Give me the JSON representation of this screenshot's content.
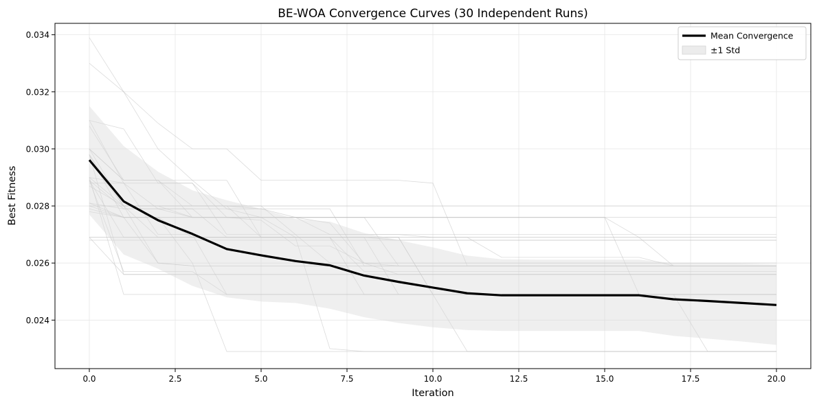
{
  "chart_data": {
    "type": "line",
    "title": "BE-WOA Convergence Curves (30 Independent Runs)",
    "xlabel": "Iteration",
    "ylabel": "Best Fitness",
    "xlim": [
      -1,
      21
    ],
    "ylim": [
      0.0223,
      0.0344
    ],
    "x_ticks": [
      0,
      2.5,
      5,
      7.5,
      10,
      12.5,
      15,
      17.5,
      20
    ],
    "x_tick_labels": [
      "0.0",
      "2.5",
      "5.0",
      "7.5",
      "10.0",
      "12.5",
      "15.0",
      "17.5",
      "20.0"
    ],
    "y_ticks": [
      0.024,
      0.026,
      0.028,
      0.03,
      0.032,
      0.034
    ],
    "y_tick_labels": [
      "0.024",
      "0.026",
      "0.028",
      "0.030",
      "0.032",
      "0.034"
    ],
    "grid": true,
    "legend_position": "top-right",
    "legend": [
      {
        "label": "Mean Convergence",
        "kind": "line",
        "color": "#000000"
      },
      {
        "label": "±1 Std",
        "kind": "band",
        "color": "#d9d9d9"
      }
    ],
    "x": [
      0,
      1,
      2,
      3,
      4,
      5,
      6,
      7,
      8,
      9,
      10,
      11,
      12,
      13,
      14,
      15,
      16,
      17,
      18,
      19,
      20
    ],
    "series": [
      {
        "name": "Mean Convergence",
        "role": "mean",
        "color": "#000000",
        "values": [
          0.02961,
          0.02816,
          0.0275,
          0.02702,
          0.02649,
          0.02627,
          0.02607,
          0.02592,
          0.02556,
          0.02534,
          0.02514,
          0.02494,
          0.02487,
          0.02487,
          0.02487,
          0.02487,
          0.02487,
          0.02473,
          0.02467,
          0.0246,
          0.02453
        ]
      },
      {
        "name": "±1 Std",
        "role": "band",
        "color": "#d9d9d9",
        "upper": [
          0.0315,
          0.0301,
          0.0292,
          0.02855,
          0.0282,
          0.0279,
          0.02754,
          0.02745,
          0.02705,
          0.0268,
          0.02655,
          0.02626,
          0.02613,
          0.02612,
          0.02612,
          0.02612,
          0.02612,
          0.026,
          0.026,
          0.02598,
          0.02595
        ],
        "lower": [
          0.0277,
          0.0263,
          0.0258,
          0.0252,
          0.0248,
          0.02465,
          0.0246,
          0.0244,
          0.0241,
          0.0239,
          0.02375,
          0.02365,
          0.02362,
          0.02362,
          0.02362,
          0.02362,
          0.02362,
          0.02345,
          0.02335,
          0.02325,
          0.02313
        ]
      }
    ],
    "runs_color": "#bdbdbd",
    "runs": [
      [
        0.0339,
        0.032,
        0.0309,
        0.03,
        0.03,
        0.0289,
        0.0289,
        0.0289,
        0.0289,
        0.0289,
        0.0288,
        0.0259,
        0.0259,
        0.0259,
        0.0259,
        0.0259,
        0.0259,
        0.0259,
        0.0259,
        0.0259,
        0.0259
      ],
      [
        0.033,
        0.032,
        0.03,
        0.0289,
        0.0279,
        0.0276,
        0.0276,
        0.0274,
        0.026,
        0.0259,
        0.0259,
        0.0259,
        0.0259,
        0.0259,
        0.0259,
        0.0259,
        0.0259,
        0.0259,
        0.0259,
        0.0259,
        0.0259
      ],
      [
        0.031,
        0.0288,
        0.0288,
        0.0288,
        0.0276,
        0.0276,
        0.0276,
        0.027,
        0.027,
        0.027,
        0.0269,
        0.0269,
        0.0262,
        0.0262,
        0.0262,
        0.0262,
        0.0262,
        0.0259,
        0.0259,
        0.0259,
        0.0259
      ],
      [
        0.031,
        0.0307,
        0.0288,
        0.0288,
        0.027,
        0.027,
        0.027,
        0.026,
        0.026,
        0.0256,
        0.0256,
        0.0256,
        0.0256,
        0.0256,
        0.0256,
        0.0256,
        0.0256,
        0.0256,
        0.0256,
        0.0256,
        0.0256
      ],
      [
        0.0308,
        0.0289,
        0.0289,
        0.0289,
        0.0289,
        0.0269,
        0.0269,
        0.0269,
        0.0249,
        0.0249,
        0.0249,
        0.0249,
        0.0249,
        0.0249,
        0.0249,
        0.0249,
        0.0249,
        0.0249,
        0.0249,
        0.0249,
        0.0249
      ],
      [
        0.03,
        0.028,
        0.028,
        0.0276,
        0.0276,
        0.0276,
        0.0276,
        0.0276,
        0.0276,
        0.0259,
        0.0259,
        0.0259,
        0.0259,
        0.0259,
        0.0259,
        0.0259,
        0.0259,
        0.0259,
        0.0259,
        0.0259,
        0.0259
      ],
      [
        0.03,
        0.0289,
        0.0289,
        0.028,
        0.028,
        0.0279,
        0.0279,
        0.0279,
        0.0259,
        0.0259,
        0.0259,
        0.0259,
        0.0259,
        0.0259,
        0.0259,
        0.0259,
        0.0259,
        0.0259,
        0.0259,
        0.0259,
        0.0259
      ],
      [
        0.0298,
        0.028,
        0.028,
        0.028,
        0.028,
        0.028,
        0.028,
        0.028,
        0.028,
        0.028,
        0.028,
        0.028,
        0.028,
        0.028,
        0.028,
        0.028,
        0.028,
        0.028,
        0.028,
        0.028,
        0.028
      ],
      [
        0.029,
        0.0288,
        0.0279,
        0.0279,
        0.0279,
        0.0279,
        0.0276,
        0.0276,
        0.0276,
        0.0276,
        0.0276,
        0.0276,
        0.0276,
        0.0276,
        0.0276,
        0.0276,
        0.0276,
        0.0276,
        0.0276,
        0.0276,
        0.0276
      ],
      [
        0.0298,
        0.0276,
        0.0276,
        0.0269,
        0.0269,
        0.0269,
        0.0269,
        0.0269,
        0.0269,
        0.0268,
        0.0268,
        0.0268,
        0.0268,
        0.0268,
        0.0268,
        0.0268,
        0.0268,
        0.0268,
        0.0268,
        0.0268,
        0.0268
      ],
      [
        0.0289,
        0.0279,
        0.0279,
        0.0276,
        0.0276,
        0.0275,
        0.0266,
        0.0266,
        0.026,
        0.026,
        0.026,
        0.026,
        0.026,
        0.026,
        0.026,
        0.026,
        0.026,
        0.026,
        0.026,
        0.026,
        0.026
      ],
      [
        0.0281,
        0.0279,
        0.0279,
        0.0279,
        0.0269,
        0.0269,
        0.0269,
        0.0269,
        0.0257,
        0.0257,
        0.0257,
        0.0257,
        0.0257,
        0.0257,
        0.0257,
        0.0257,
        0.0257,
        0.0257,
        0.0257,
        0.0257,
        0.0257
      ],
      [
        0.028,
        0.028,
        0.0269,
        0.0269,
        0.0269,
        0.0269,
        0.0269,
        0.0269,
        0.0269,
        0.0249,
        0.0249,
        0.0249,
        0.0249,
        0.0249,
        0.0249,
        0.0249,
        0.0249,
        0.0249,
        0.0249,
        0.0249,
        0.0249
      ],
      [
        0.0278,
        0.0276,
        0.0276,
        0.0276,
        0.0276,
        0.0276,
        0.0276,
        0.0276,
        0.0276,
        0.0276,
        0.0276,
        0.0276,
        0.0276,
        0.0276,
        0.0276,
        0.0276,
        0.0269,
        0.0259,
        0.0259,
        0.0259,
        0.0259
      ],
      [
        0.0269,
        0.0269,
        0.0269,
        0.0269,
        0.0269,
        0.0269,
        0.0269,
        0.0269,
        0.0269,
        0.0269,
        0.0249,
        0.0249,
        0.0249,
        0.0249,
        0.0249,
        0.0249,
        0.0249,
        0.0249,
        0.0249,
        0.0249,
        0.0249
      ],
      [
        0.0269,
        0.0269,
        0.0269,
        0.0269,
        0.0269,
        0.0269,
        0.0269,
        0.0269,
        0.0269,
        0.0269,
        0.0269,
        0.0269,
        0.0269,
        0.0269,
        0.0269,
        0.0269,
        0.0269,
        0.0269,
        0.0269,
        0.0269,
        0.0269
      ],
      [
        0.0268,
        0.0268,
        0.0268,
        0.0268,
        0.0268,
        0.0268,
        0.0268,
        0.0268,
        0.0268,
        0.0268,
        0.0268,
        0.0268,
        0.0268,
        0.0268,
        0.0268,
        0.0268,
        0.0268,
        0.0268,
        0.0268,
        0.0268,
        0.0268
      ],
      [
        0.0289,
        0.0257,
        0.0257,
        0.0257,
        0.0249,
        0.0249,
        0.0249,
        0.0249,
        0.0249,
        0.0249,
        0.0249,
        0.0249,
        0.0249,
        0.0249,
        0.0249,
        0.0249,
        0.0249,
        0.0249,
        0.0249,
        0.0249,
        0.0249
      ],
      [
        0.0298,
        0.0256,
        0.0256,
        0.0256,
        0.0256,
        0.0256,
        0.0256,
        0.0256,
        0.0256,
        0.0256,
        0.0256,
        0.0256,
        0.0256,
        0.0256,
        0.0256,
        0.0256,
        0.0256,
        0.0256,
        0.0256,
        0.0256,
        0.0256
      ],
      [
        0.029,
        0.0249,
        0.0249,
        0.0249,
        0.0249,
        0.0249,
        0.0249,
        0.0249,
        0.0249,
        0.0249,
        0.0249,
        0.0249,
        0.0249,
        0.0249,
        0.0249,
        0.0249,
        0.0249,
        0.0249,
        0.0249,
        0.0249,
        0.0249
      ],
      [
        0.0279,
        0.0276,
        0.0276,
        0.026,
        0.0229,
        0.0229,
        0.0229,
        0.0229,
        0.0229,
        0.0229,
        0.0229,
        0.0229,
        0.0229,
        0.0229,
        0.0229,
        0.0229,
        0.0229,
        0.0229,
        0.0229,
        0.0229,
        0.0229
      ],
      [
        0.0289,
        0.0269,
        0.0269,
        0.0269,
        0.0269,
        0.0269,
        0.0269,
        0.023,
        0.0229,
        0.0229,
        0.0229,
        0.0229,
        0.0229,
        0.0229,
        0.0229,
        0.0229,
        0.0229,
        0.0229,
        0.0229,
        0.0229,
        0.0229
      ],
      [
        0.029,
        0.028,
        0.028,
        0.028,
        0.028,
        0.0269,
        0.0269,
        0.0269,
        0.0269,
        0.0269,
        0.0249,
        0.0229,
        0.0229,
        0.0229,
        0.0229,
        0.0229,
        0.0229,
        0.0229,
        0.0229,
        0.0229,
        0.0229
      ],
      [
        0.0281,
        0.0276,
        0.0276,
        0.0276,
        0.0276,
        0.0276,
        0.0276,
        0.0276,
        0.0276,
        0.0276,
        0.0276,
        0.0276,
        0.0276,
        0.0276,
        0.0276,
        0.0276,
        0.0249,
        0.0249,
        0.0229,
        0.0229,
        0.0229
      ],
      [
        0.0288,
        0.0288,
        0.027,
        0.027,
        0.0249,
        0.0249,
        0.0249,
        0.0249,
        0.0249,
        0.0249,
        0.0249,
        0.0249,
        0.0249,
        0.0249,
        0.0249,
        0.0249,
        0.0249,
        0.0249,
        0.0249,
        0.0249,
        0.0249
      ],
      [
        0.028,
        0.0276,
        0.026,
        0.0259,
        0.0259,
        0.0259,
        0.0259,
        0.0259,
        0.0259,
        0.0259,
        0.0259,
        0.0259,
        0.0259,
        0.0259,
        0.0259,
        0.0259,
        0.0259,
        0.0259,
        0.0259,
        0.0259,
        0.0259
      ],
      [
        0.0269,
        0.0256,
        0.0256,
        0.0256,
        0.0256,
        0.0256,
        0.0256,
        0.0256,
        0.0256,
        0.0256,
        0.0256,
        0.0256,
        0.0256,
        0.0256,
        0.0256,
        0.0256,
        0.0256,
        0.0256,
        0.0256,
        0.0256,
        0.0256
      ],
      [
        0.03,
        0.0289,
        0.0289,
        0.0276,
        0.0276,
        0.0276,
        0.0269,
        0.0269,
        0.0269,
        0.0269,
        0.0269,
        0.0269,
        0.0269,
        0.0269,
        0.0269,
        0.0269,
        0.0269,
        0.0269,
        0.0269,
        0.0269,
        0.0269
      ],
      [
        0.0296,
        0.028,
        0.026,
        0.0259,
        0.0259,
        0.0259,
        0.0259,
        0.0259,
        0.0259,
        0.0259,
        0.0259,
        0.0259,
        0.0259,
        0.0259,
        0.0259,
        0.0259,
        0.0259,
        0.0259,
        0.0259,
        0.0259,
        0.0259
      ],
      [
        0.0287,
        0.028,
        0.028,
        0.028,
        0.028,
        0.028,
        0.027,
        0.027,
        0.027,
        0.027,
        0.027,
        0.027,
        0.027,
        0.027,
        0.027,
        0.027,
        0.027,
        0.027,
        0.027,
        0.027,
        0.027
      ]
    ]
  }
}
